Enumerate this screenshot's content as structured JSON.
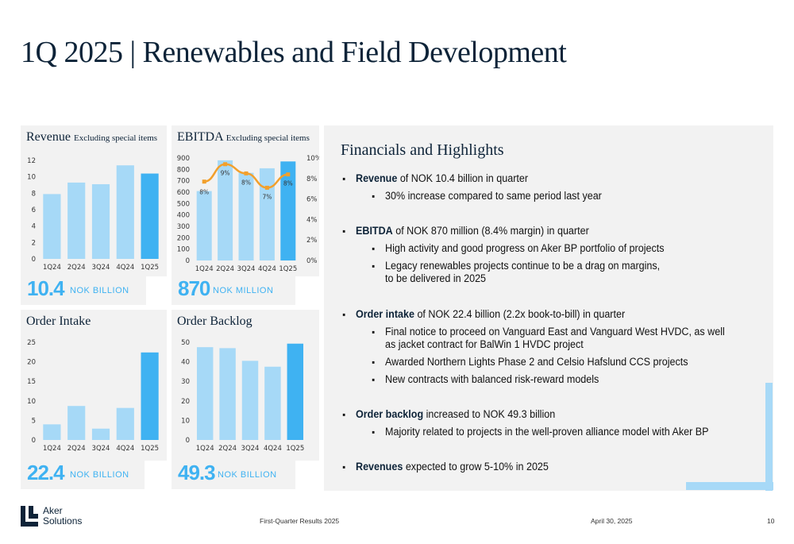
{
  "page_title": "1Q 2025 | Renewables and Field Development",
  "charts": {
    "revenue": {
      "title": "Revenue",
      "subtitle": "Excluding special items",
      "kpi": "10.4",
      "unit": "NOK BILLION"
    },
    "ebitda": {
      "title": "EBITDA",
      "subtitle": "Excluding special items",
      "kpi": "870",
      "unit": "NOK MILLION"
    },
    "order_intake": {
      "title": "Order Intake",
      "subtitle": "",
      "kpi": "22.4",
      "unit": "NOK BILLION"
    },
    "order_backlog": {
      "title": "Order Backlog",
      "subtitle": "",
      "kpi": "49.3",
      "unit": "NOK BILLION"
    }
  },
  "chart_data": [
    {
      "type": "bar",
      "title": "Revenue",
      "categories": [
        "1Q24",
        "2Q24",
        "3Q24",
        "4Q24",
        "1Q25"
      ],
      "values": [
        7.9,
        9.3,
        9.1,
        11.4,
        10.4
      ],
      "ylim": [
        0,
        12
      ],
      "yticks": [
        0,
        2,
        4,
        6,
        8,
        10,
        12
      ],
      "highlight_last": true
    },
    {
      "type": "bar",
      "title": "EBITDA",
      "categories": [
        "1Q24",
        "2Q24",
        "3Q24",
        "4Q24",
        "1Q25"
      ],
      "values": [
        610,
        880,
        770,
        810,
        870
      ],
      "ylim": [
        0,
        900
      ],
      "yticks": [
        0,
        100,
        200,
        300,
        400,
        500,
        600,
        700,
        800,
        900
      ],
      "secondary": {
        "type": "line",
        "values": [
          7.7,
          9.4,
          8.5,
          7.1,
          8.4
        ],
        "ylim": [
          0,
          10
        ],
        "yticks": [
          "0%",
          "2%",
          "4%",
          "6%",
          "8%",
          "10%"
        ],
        "labels": [
          "8%",
          "9%",
          "8%",
          "7%",
          "8%"
        ]
      },
      "highlight_last": true
    },
    {
      "type": "bar",
      "title": "Order Intake",
      "categories": [
        "1Q24",
        "2Q24",
        "3Q24",
        "4Q24",
        "1Q25"
      ],
      "values": [
        4.0,
        8.7,
        2.9,
        8.2,
        22.4
      ],
      "ylim": [
        0,
        25
      ],
      "yticks": [
        0,
        5,
        10,
        15,
        20,
        25
      ],
      "highlight_last": true
    },
    {
      "type": "bar",
      "title": "Order Backlog",
      "categories": [
        "1Q24",
        "2Q24",
        "3Q24",
        "4Q24",
        "1Q25"
      ],
      "values": [
        47.5,
        47.0,
        40.5,
        37.5,
        49.3
      ],
      "ylim": [
        0,
        50
      ],
      "yticks": [
        0,
        10,
        20,
        30,
        40,
        50
      ],
      "highlight_last": true
    }
  ],
  "colors": {
    "bar": "#a6d9f7",
    "bar_highlight": "#3fb2f2",
    "line": "#f2a02c",
    "kpi": "#3fb2f2"
  },
  "highlights": {
    "title": "Financials and Highlights",
    "b1_bold": "Revenue",
    "b1_rest": " of NOK 10.4 billion in quarter",
    "b1_s1": "30% increase compared to same period last year",
    "b2_bold": "EBITDA",
    "b2_rest": " of NOK 870 million (8.4% margin) in quarter",
    "b2_s1": "High activity and good progress on Aker BP portfolio of projects",
    "b2_s2a": "Legacy renewables projects continue to be a drag on margins,",
    "b2_s2b": "to be delivered in 2025",
    "b3_bold": "Order intake",
    "b3_rest": " of NOK 22.4 billion (2.2x book-to-bill) in quarter",
    "b3_s1a": "Final notice to proceed on Vanguard East and Vanguard West HVDC, as well",
    "b3_s1b": "as jacket contract for BalWin 1 HVDC project",
    "b3_s2": "Awarded Northern Lights Phase 2 and Celsio Hafslund CCS projects",
    "b3_s3": "New contracts with balanced risk-reward models",
    "b4_bold": "Order backlog",
    "b4_rest": " increased to NOK 49.3 billion",
    "b4_s1": "Majority related to projects in the well-proven alliance model with Aker BP",
    "b5_bold": "Revenues",
    "b5_rest": " expected to grow 5-10% in 2025"
  },
  "footer": {
    "logo_line1": "Aker",
    "logo_line2": "Solutions",
    "center": "First-Quarter Results 2025",
    "date": "April 30, 2025",
    "page": "10"
  }
}
